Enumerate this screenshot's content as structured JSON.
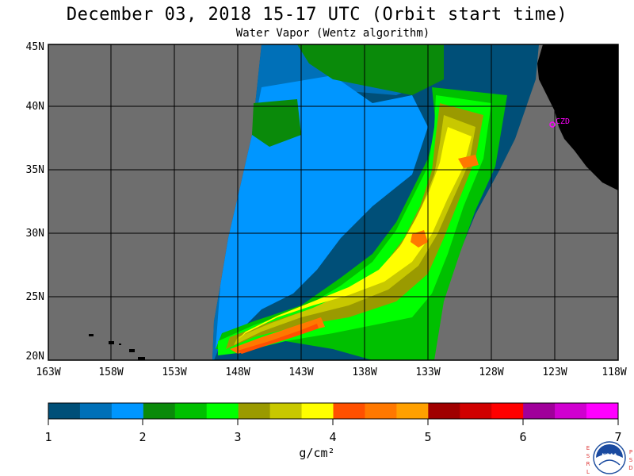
{
  "header": {
    "title": "December 03, 2018  15-17 UTC  (Orbit start time)",
    "subtitle": "Water Vapor (Wentz algorithm)"
  },
  "map": {
    "lat_labels": [
      "45N",
      "40N",
      "35N",
      "30N",
      "25N",
      "20N"
    ],
    "lon_labels": [
      "163W",
      "158W",
      "153W",
      "148W",
      "143W",
      "138W",
      "133W",
      "128W",
      "123W",
      "118W"
    ],
    "station_label": "CZD",
    "colors": {
      "no_data": "#6e6e6e",
      "land": "#000000",
      "station": "#ff00ff"
    }
  },
  "colorbar": {
    "unit": "g/cm²",
    "tick_labels": [
      "1",
      "2",
      "3",
      "4",
      "5",
      "6",
      "7"
    ],
    "colors": [
      "#004f78",
      "#0070b8",
      "#0096ff",
      "#0a8a0a",
      "#00c000",
      "#00ff00",
      "#9a9a00",
      "#c8c800",
      "#ffff00",
      "#ff5000",
      "#ff7800",
      "#ffa000",
      "#a00000",
      "#d00000",
      "#ff0000",
      "#a0009a",
      "#d000d0",
      "#ff00ff"
    ]
  },
  "logo": {
    "left_text": "ESRL",
    "right_text": "PSD",
    "center_text": "NOAA"
  }
}
